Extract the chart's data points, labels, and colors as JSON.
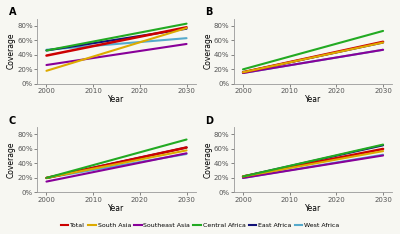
{
  "panels": [
    "A",
    "B",
    "C",
    "D"
  ],
  "x": [
    2000,
    2030
  ],
  "series": {
    "Total": {
      "color": "#cc0000",
      "lw": 1.8,
      "A": [
        39,
        78
      ],
      "B": [
        16,
        58
      ],
      "C": [
        20,
        62
      ],
      "D": [
        22,
        60
      ]
    },
    "South Asia": {
      "color": "#ddaa00",
      "lw": 1.5,
      "A": [
        18,
        77
      ],
      "B": [
        16,
        57
      ],
      "C": [
        20,
        58
      ],
      "D": [
        22,
        57
      ]
    },
    "Southeast Asia": {
      "color": "#880099",
      "lw": 1.5,
      "A": [
        26,
        55
      ],
      "B": [
        15,
        47
      ],
      "C": [
        15,
        54
      ],
      "D": [
        20,
        51
      ]
    },
    "Central Africa": {
      "color": "#22aa22",
      "lw": 1.5,
      "A": [
        46,
        83
      ],
      "B": [
        20,
        73
      ],
      "C": [
        20,
        73
      ],
      "D": [
        22,
        66
      ]
    },
    "East Africa": {
      "color": "#111177",
      "lw": 1.5,
      "A": [
        46,
        76
      ],
      "B": [
        16,
        57
      ],
      "C": [
        20,
        62
      ],
      "D": [
        22,
        65
      ]
    },
    "West Africa": {
      "color": "#55aacc",
      "lw": 1.5,
      "A": [
        47,
        63
      ],
      "B": [
        15,
        47
      ],
      "C": [
        20,
        53
      ],
      "D": [
        20,
        52
      ]
    }
  },
  "series_order": [
    "West Africa",
    "East Africa",
    "Southeast Asia",
    "Total",
    "South Asia",
    "Central Africa"
  ],
  "ylim": [
    0,
    90
  ],
  "yticks": [
    0,
    20,
    40,
    60,
    80
  ],
  "ytick_labels": [
    "0%",
    "20%",
    "40%",
    "60%",
    "80%"
  ],
  "xticks": [
    2000,
    2010,
    2020,
    2030
  ],
  "xlabel": "Year",
  "ylabel": "Coverage",
  "bg_color": "#f7f7f2",
  "legend_order": [
    "Total",
    "South Asia",
    "Southeast Asia",
    "Central Africa",
    "East Africa",
    "West Africa"
  ],
  "legend_colors": [
    "#cc0000",
    "#ddaa00",
    "#880099",
    "#22aa22",
    "#111177",
    "#55aacc"
  ]
}
